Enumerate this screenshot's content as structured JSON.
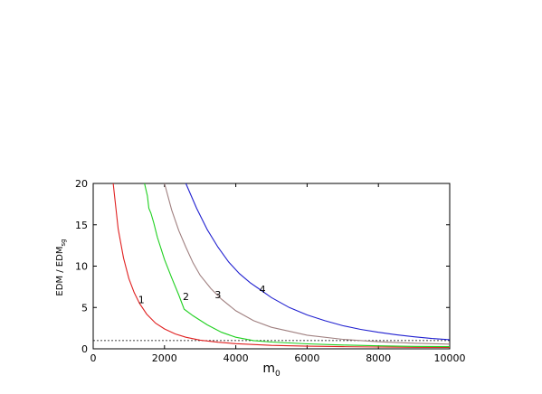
{
  "chart_data": {
    "type": "line",
    "xlabel": "m",
    "xlabel_sub": "0",
    "ylabel": "EDM / EDM",
    "ylabel_sub": "sg",
    "xlim": [
      0,
      10000
    ],
    "ylim": [
      0,
      20
    ],
    "xticks": [
      0,
      2000,
      4000,
      6000,
      8000,
      10000
    ],
    "yticks": [
      0,
      5,
      10,
      15,
      20
    ],
    "reference_line": {
      "y": 1,
      "style": "dotted",
      "color": "#000000"
    },
    "series": [
      {
        "label": "1",
        "color": "#e02020",
        "label_at": [
          1350,
          5.5
        ],
        "points": [
          [
            560,
            20
          ],
          [
            700,
            14.5
          ],
          [
            850,
            11
          ],
          [
            1000,
            8.5
          ],
          [
            1150,
            6.8
          ],
          [
            1300,
            5.5
          ],
          [
            1500,
            4.2
          ],
          [
            1750,
            3.1
          ],
          [
            2000,
            2.4
          ],
          [
            2300,
            1.8
          ],
          [
            2600,
            1.4
          ],
          [
            3000,
            1.05
          ],
          [
            3500,
            0.8
          ],
          [
            4000,
            0.62
          ],
          [
            5000,
            0.42
          ],
          [
            6000,
            0.32
          ],
          [
            7000,
            0.26
          ],
          [
            8000,
            0.22
          ],
          [
            9000,
            0.19
          ],
          [
            10000,
            0.17
          ]
        ]
      },
      {
        "label": "2",
        "color": "#20d020",
        "label_at": [
          2600,
          5.9
        ],
        "points": [
          [
            1440,
            20
          ],
          [
            1520,
            18.5
          ],
          [
            1560,
            17
          ],
          [
            1620,
            16.4
          ],
          [
            1700,
            15.2
          ],
          [
            1800,
            13.5
          ],
          [
            2000,
            10.8
          ],
          [
            2200,
            8.6
          ],
          [
            2400,
            6.5
          ],
          [
            2550,
            4.8
          ],
          [
            2800,
            4.0
          ],
          [
            3200,
            2.9
          ],
          [
            3600,
            2.0
          ],
          [
            4000,
            1.4
          ],
          [
            4500,
            1.0
          ],
          [
            5000,
            0.82
          ],
          [
            6000,
            0.6
          ],
          [
            7000,
            0.46
          ],
          [
            8000,
            0.36
          ],
          [
            9000,
            0.3
          ],
          [
            10000,
            0.26
          ]
        ]
      },
      {
        "label": "3",
        "color": "#a08080",
        "label_at": [
          3500,
          6.1
        ],
        "points": [
          [
            2000,
            20
          ],
          [
            2200,
            16.8
          ],
          [
            2400,
            14.3
          ],
          [
            2600,
            12.3
          ],
          [
            2800,
            10.4
          ],
          [
            3000,
            8.9
          ],
          [
            3300,
            7.3
          ],
          [
            3600,
            6.0
          ],
          [
            4000,
            4.6
          ],
          [
            4500,
            3.4
          ],
          [
            5000,
            2.6
          ],
          [
            6000,
            1.65
          ],
          [
            7000,
            1.15
          ],
          [
            8000,
            0.85
          ],
          [
            9000,
            0.68
          ],
          [
            10000,
            0.57
          ]
        ]
      },
      {
        "label": "4",
        "color": "#2020d0",
        "label_at": [
          4750,
          6.8
        ],
        "points": [
          [
            2600,
            20
          ],
          [
            2900,
            17
          ],
          [
            3200,
            14.4
          ],
          [
            3500,
            12.3
          ],
          [
            3800,
            10.5
          ],
          [
            4100,
            9.1
          ],
          [
            4400,
            8.0
          ],
          [
            4700,
            7.1
          ],
          [
            5000,
            6.2
          ],
          [
            5500,
            5.0
          ],
          [
            6000,
            4.1
          ],
          [
            6500,
            3.4
          ],
          [
            7000,
            2.8
          ],
          [
            7500,
            2.35
          ],
          [
            8000,
            2.0
          ],
          [
            8500,
            1.7
          ],
          [
            9000,
            1.45
          ],
          [
            9500,
            1.25
          ],
          [
            10000,
            1.1
          ]
        ]
      }
    ]
  }
}
